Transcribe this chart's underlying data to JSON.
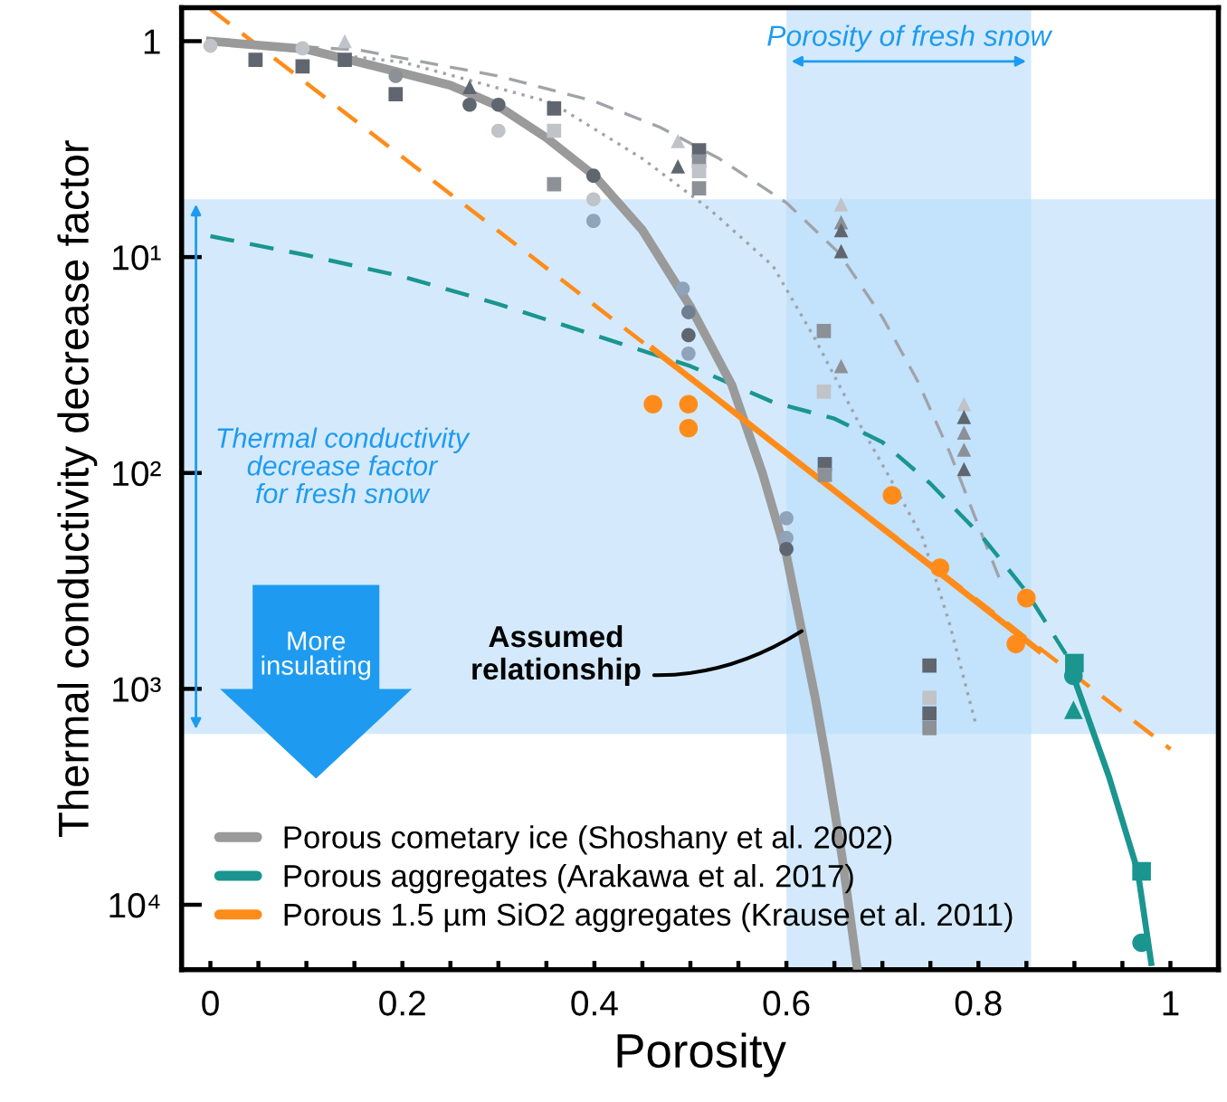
{
  "chart_data": {
    "type": "line",
    "xlabel": "Porosity",
    "ylabel": "Thermal conductivity decrease factor",
    "xlim": [
      -0.03,
      1.05
    ],
    "ylim": [
      20000,
      0.7
    ],
    "log": "y",
    "xticks": [
      0,
      {
        "value": 0.05,
        "label": null
      },
      {
        "value": 0.1,
        "label": null
      },
      {
        "value": 0.15,
        "label": null
      },
      0.2,
      {
        "value": 0.25,
        "label": null
      },
      {
        "value": 0.3,
        "label": null
      },
      {
        "value": 0.35,
        "label": null
      },
      0.4,
      {
        "value": 0.45,
        "label": null
      },
      {
        "value": 0.5,
        "label": null
      },
      {
        "value": 0.55,
        "label": null
      },
      0.6,
      {
        "value": 0.65,
        "label": null
      },
      {
        "value": 0.7,
        "label": null
      },
      {
        "value": 0.75,
        "label": null
      },
      0.8,
      {
        "value": 0.85,
        "label": null
      },
      {
        "value": 0.9,
        "label": null
      },
      {
        "value": 0.95,
        "label": null
      },
      1
    ],
    "yticks": [
      1,
      {
        "value": 10,
        "label": "10¹"
      },
      {
        "value": 100,
        "label": "10²"
      },
      {
        "value": 1000,
        "label": "10³"
      },
      {
        "value": 10000,
        "label": "10⁴"
      }
    ],
    "grid": false,
    "legend": "bottom left",
    "bands": [
      {
        "axis": "x",
        "from": 0.6,
        "to": 0.855,
        "label": "Porosity of fresh snow",
        "color": "#b8dcfa"
      },
      {
        "axis": "y",
        "from": 5.4,
        "to": 1620,
        "label": "Thermal conductivity\ndecrease factor\nfor fresh snow",
        "color": "#b8dcfa"
      }
    ],
    "series": [
      {
        "type": "line",
        "color": "#a0a3a8",
        "line_style": "dashed",
        "marker": "none",
        "x": [
          0,
          0.155,
          0.3,
          0.4,
          0.468,
          0.53,
          0.6,
          0.655,
          0.7,
          0.736,
          0.77,
          0.805,
          0.824
        ],
        "values": [
          1,
          1.1,
          1.45,
          1.9,
          2.5,
          3.5,
          5.6,
          9.6,
          19,
          37,
          80,
          200,
          325
        ]
      },
      {
        "type": "line",
        "color": "#a0a3a8",
        "line_style": "dotted",
        "marker": "none",
        "x": [
          0,
          0.2,
          0.356,
          0.45,
          0.52,
          0.586,
          0.63,
          0.674,
          0.71,
          0.742,
          0.77,
          0.798
        ],
        "values": [
          1,
          1.25,
          1.93,
          3.5,
          6,
          11,
          24,
          57,
          110,
          200,
          500,
          1500
        ]
      },
      {
        "type": "scatter",
        "marker": "square",
        "x": [
          0.047,
          0.096,
          0.14,
          0.193,
          0.358,
          0.358,
          0.358,
          0.509,
          0.509,
          0.509,
          0.509,
          0.639,
          0.639,
          0.64,
          0.64,
          0.749,
          0.749,
          0.749,
          0.749
        ],
        "values": [
          1.22,
          1.31,
          1.22,
          1.76,
          2.05,
          2.6,
          4.6,
          3.2,
          3.6,
          4.0,
          4.8,
          22,
          42,
          91,
          102,
          780,
          1100,
          1300,
          1520
        ],
        "colors": [
          "#5f6670",
          "#5f6670",
          "#5f6670",
          "#5f6670",
          "#5f6670",
          "#c0c3c8",
          "#8c9097",
          "#5f6670",
          "#8c9097",
          "#c0c3c8",
          "#8c9097",
          "#8c9097",
          "#c0c3c8",
          "#5f6670",
          "#8c9097",
          "#5f6670",
          "#c0c3c8",
          "#5f6670",
          "#8c9097"
        ]
      },
      {
        "type": "scatter",
        "marker": "triangle",
        "x": [
          0.14,
          0.27,
          0.487,
          0.487,
          0.657,
          0.657,
          0.657,
          0.657,
          0.657,
          0.785,
          0.785,
          0.785,
          0.785,
          0.785
        ],
        "values": [
          1.0,
          1.63,
          3.8,
          2.9,
          5.7,
          6.9,
          7.5,
          9.4,
          32,
          48,
          55,
          65,
          78,
          96
        ],
        "colors": [
          "#c0c3c8",
          "#5f6670",
          "#5f6670",
          "#c0c3c8",
          "#c0c3c8",
          "#8c9097",
          "#5f6670",
          "#5f6670",
          "#8c9097",
          "#c0c3c8",
          "#5f6670",
          "#8c9097",
          "#8c9097",
          "#5f6670"
        ]
      },
      {
        "type": "scatter",
        "marker": "circle",
        "x": [
          0,
          0.096,
          0.193,
          0.27,
          0.3,
          0.3,
          0.399,
          0.399,
          0.399,
          0.492,
          0.498,
          0.498,
          0.498,
          0.6,
          0.6,
          0.6
        ],
        "values": [
          1.05,
          1.08,
          1.45,
          1.97,
          1.97,
          2.6,
          4.2,
          5.4,
          6.8,
          14,
          18,
          23,
          28,
          162,
          200,
          225
        ],
        "colors": [
          "#c0c3c8",
          "#c0c3c8",
          "#8c9097",
          "#5f6670",
          "#5f6670",
          "#c0c3c8",
          "#5f6670",
          "#c0c3c8",
          "#8fa3bb",
          "#8fa3bb",
          "#6f7f92",
          "#5f6670",
          "#8fa3bb",
          "#8fa3bb",
          "#8fa3bb",
          "#5f6670"
        ]
      },
      {
        "type": "line",
        "color": "#1a9590",
        "line_style": "dashed",
        "marker": "none",
        "x": [
          0,
          0.1,
          0.2,
          0.3,
          0.4,
          0.5,
          0.586,
          0.65,
          0.7,
          0.75,
          0.805,
          0.85,
          0.891
        ],
        "values": [
          8,
          9.8,
          12.3,
          16.5,
          23,
          32,
          47,
          56,
          72,
          112,
          200,
          355,
          690
        ]
      },
      {
        "type": "line",
        "color": "#ff8c1a",
        "line_style": "dashed",
        "marker": "none",
        "x": [
          0,
          1
        ],
        "values": [
          0.71,
          1900
        ]
      },
      {
        "type": "line",
        "name": "Porous cometary ice (Shoshany et al. 2002)",
        "color": "#9a9a9a",
        "line_style": "solid",
        "marker": "none",
        "x": [
          0,
          0.1,
          0.17,
          0.25,
          0.3,
          0.35,
          0.4,
          0.45,
          0.5,
          0.543,
          0.575,
          0.6,
          0.616,
          0.63,
          0.642,
          0.658,
          0.674
        ],
        "values": [
          1,
          1.09,
          1.3,
          1.6,
          2.0,
          2.8,
          4.2,
          7.5,
          17,
          39,
          100,
          240,
          540,
          1100,
          2200,
          6000,
          20000
        ]
      },
      {
        "type": "line",
        "name": "Porous aggregates (Arakawa et al. 2017)",
        "color": "#1a9590",
        "line_style": "solid",
        "marker": "none",
        "x": [
          0.898,
          0.936,
          0.966,
          0.98
        ],
        "values": [
          850,
          2550,
          7000,
          18600
        ]
      },
      {
        "type": "line",
        "name": "Porous 1.5 µm SiO2 aggregates (Krause et al. 2011)",
        "color": "#ff8c1a",
        "line_style": "solid",
        "marker": "none",
        "x": [
          0.461,
          0.863
        ],
        "values": [
          26.6,
          665
        ]
      },
      {
        "type": "scatter",
        "marker": "circle",
        "color": "#ff8c1a",
        "x": [
          0.461,
          0.498,
          0.498,
          0.71,
          0.76,
          0.85,
          0.839
        ],
        "values": [
          48,
          48,
          62,
          127,
          275,
          380,
          620
        ]
      },
      {
        "type": "scatter",
        "marker": "square",
        "color": "#1a9590",
        "x": [
          0.9,
          0.97
        ],
        "values": [
          760,
          7000
        ]
      },
      {
        "type": "scatter",
        "marker": "circle",
        "color": "#1a9590",
        "x": [
          0.899,
          0.97
        ],
        "values": [
          870,
          15000
        ]
      },
      {
        "type": "scatter",
        "marker": "triangle",
        "color": "#1a9590",
        "x": [
          0.899
        ],
        "values": [
          1250
        ]
      }
    ],
    "annotations": [
      "More\ninsulating",
      {
        "text": "Assumed\nrelationship",
        "x": 0.616,
        "y": 540
      }
    ]
  }
}
